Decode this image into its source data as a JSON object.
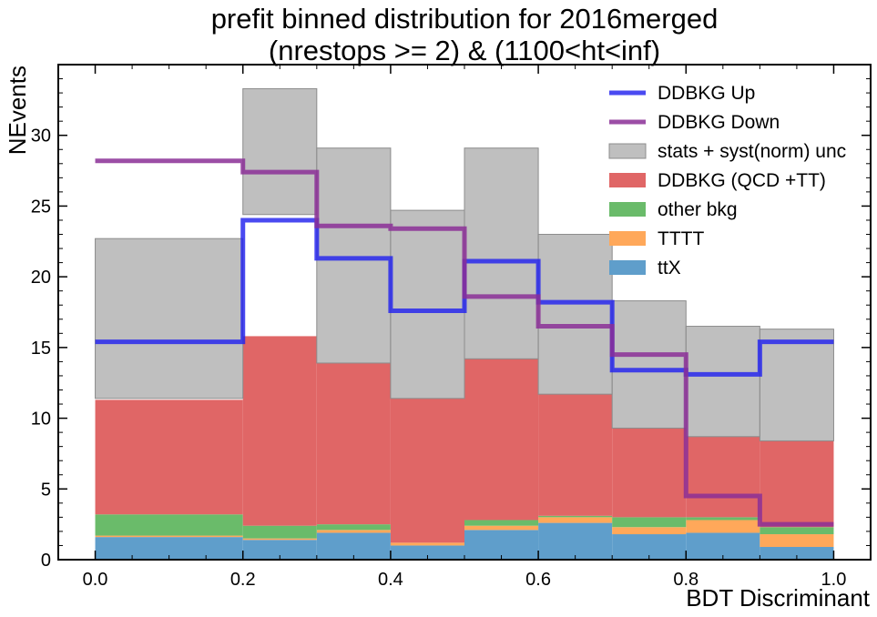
{
  "chart_data": {
    "type": "bar",
    "title_lines": [
      "prefit binned distribution for 2016merged",
      "(nrestops >= 2) & (1100<ht<inf)"
    ],
    "xlabel": "BDT Discriminant",
    "ylabel": "NEvents",
    "xlim": [
      -0.05,
      1.05
    ],
    "ylim": [
      0,
      35
    ],
    "x_ticks": [
      0.0,
      0.2,
      0.4,
      0.6,
      0.8,
      1.0
    ],
    "x_tick_labels": [
      "0.0",
      "0.2",
      "0.4",
      "0.6",
      "0.8",
      "1.0"
    ],
    "y_ticks": [
      0,
      5,
      10,
      15,
      20,
      25,
      30
    ],
    "y_tick_labels": [
      "0",
      "5",
      "10",
      "15",
      "20",
      "25",
      "30"
    ],
    "bin_edges": [
      0.0,
      0.2,
      0.3,
      0.4,
      0.5,
      0.6,
      0.7,
      0.8,
      0.9,
      1.0
    ],
    "legend_position": "top-right",
    "stack": [
      {
        "name": "ttX",
        "color": "#5f9ecb",
        "values": [
          1.6,
          1.4,
          1.9,
          1.0,
          2.1,
          2.6,
          1.8,
          1.9,
          0.9
        ]
      },
      {
        "name": "TTTT",
        "color": "#ffa85a",
        "values": [
          0.1,
          0.1,
          0.2,
          0.2,
          0.3,
          0.4,
          0.5,
          0.9,
          0.9
        ]
      },
      {
        "name": "other bkg",
        "color": "#6abb6a",
        "values": [
          1.5,
          0.9,
          0.4,
          0.0,
          0.4,
          0.1,
          0.7,
          0.2,
          0.5
        ]
      },
      {
        "name": "DDBKG (QCD +TT)",
        "color": "#e06666",
        "values": [
          8.1,
          13.4,
          11.4,
          10.2,
          11.4,
          8.6,
          6.3,
          5.7,
          6.1
        ]
      }
    ],
    "uncertainty": {
      "name": "stats + syst(norm) unc",
      "color": "#a9a9a9",
      "opacity": 0.75,
      "low": [
        11.4,
        24.4,
        13.9,
        11.4,
        14.2,
        11.7,
        9.3,
        8.7,
        8.4
      ],
      "high": [
        22.7,
        33.3,
        29.1,
        24.7,
        29.1,
        23.0,
        18.3,
        16.5,
        16.3
      ]
    },
    "lines": [
      {
        "name": "DDBKG Up",
        "color": "#2222ee",
        "opacity": 0.82,
        "values": [
          15.4,
          24.0,
          21.3,
          17.6,
          21.1,
          18.2,
          13.4,
          13.1,
          15.4
        ]
      },
      {
        "name": "DDBKG Down",
        "color": "#8b2f96",
        "opacity": 0.85,
        "values": [
          28.2,
          27.4,
          23.6,
          23.4,
          18.6,
          16.5,
          14.5,
          4.5,
          2.5
        ]
      }
    ]
  }
}
